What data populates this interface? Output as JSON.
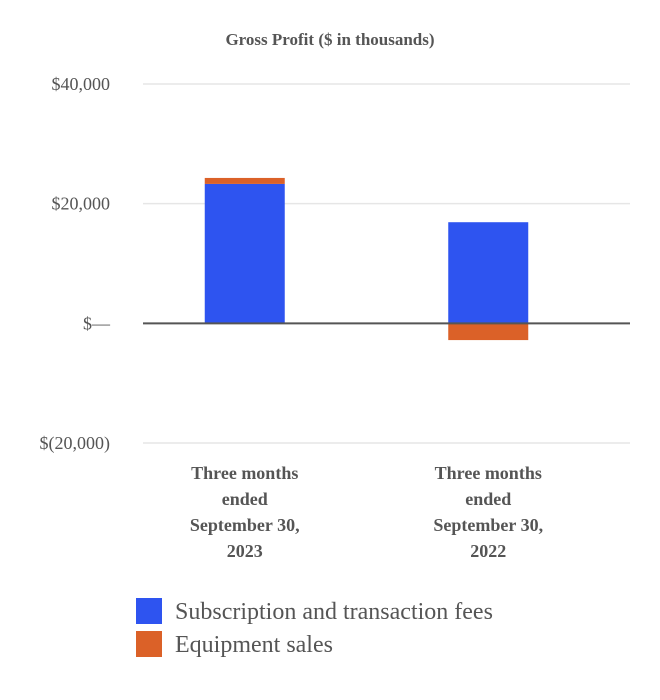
{
  "chart_data": {
    "type": "bar",
    "stacked": true,
    "title": "Gross Profit ($ in thousands)",
    "xlabel": "",
    "ylabel": "",
    "ylim": [
      -20000,
      40000
    ],
    "yticks": [
      40000,
      20000,
      0,
      -20000
    ],
    "ytick_labels": [
      "$40,000",
      "$20,000",
      "$—",
      "$(20,000)"
    ],
    "categories": [
      [
        "Three months",
        "ended",
        "September 30,",
        "2023"
      ],
      [
        "Three months",
        "ended",
        "September 30,",
        "2022"
      ]
    ],
    "series": [
      {
        "name": "Subscription and transaction fees",
        "color": "#2e54f0",
        "values": [
          23300,
          16900
        ]
      },
      {
        "name": "Equipment sales",
        "color": "#db6128",
        "values": [
          1000,
          -2800
        ]
      }
    ],
    "grid": true,
    "legend_position": "bottom"
  }
}
